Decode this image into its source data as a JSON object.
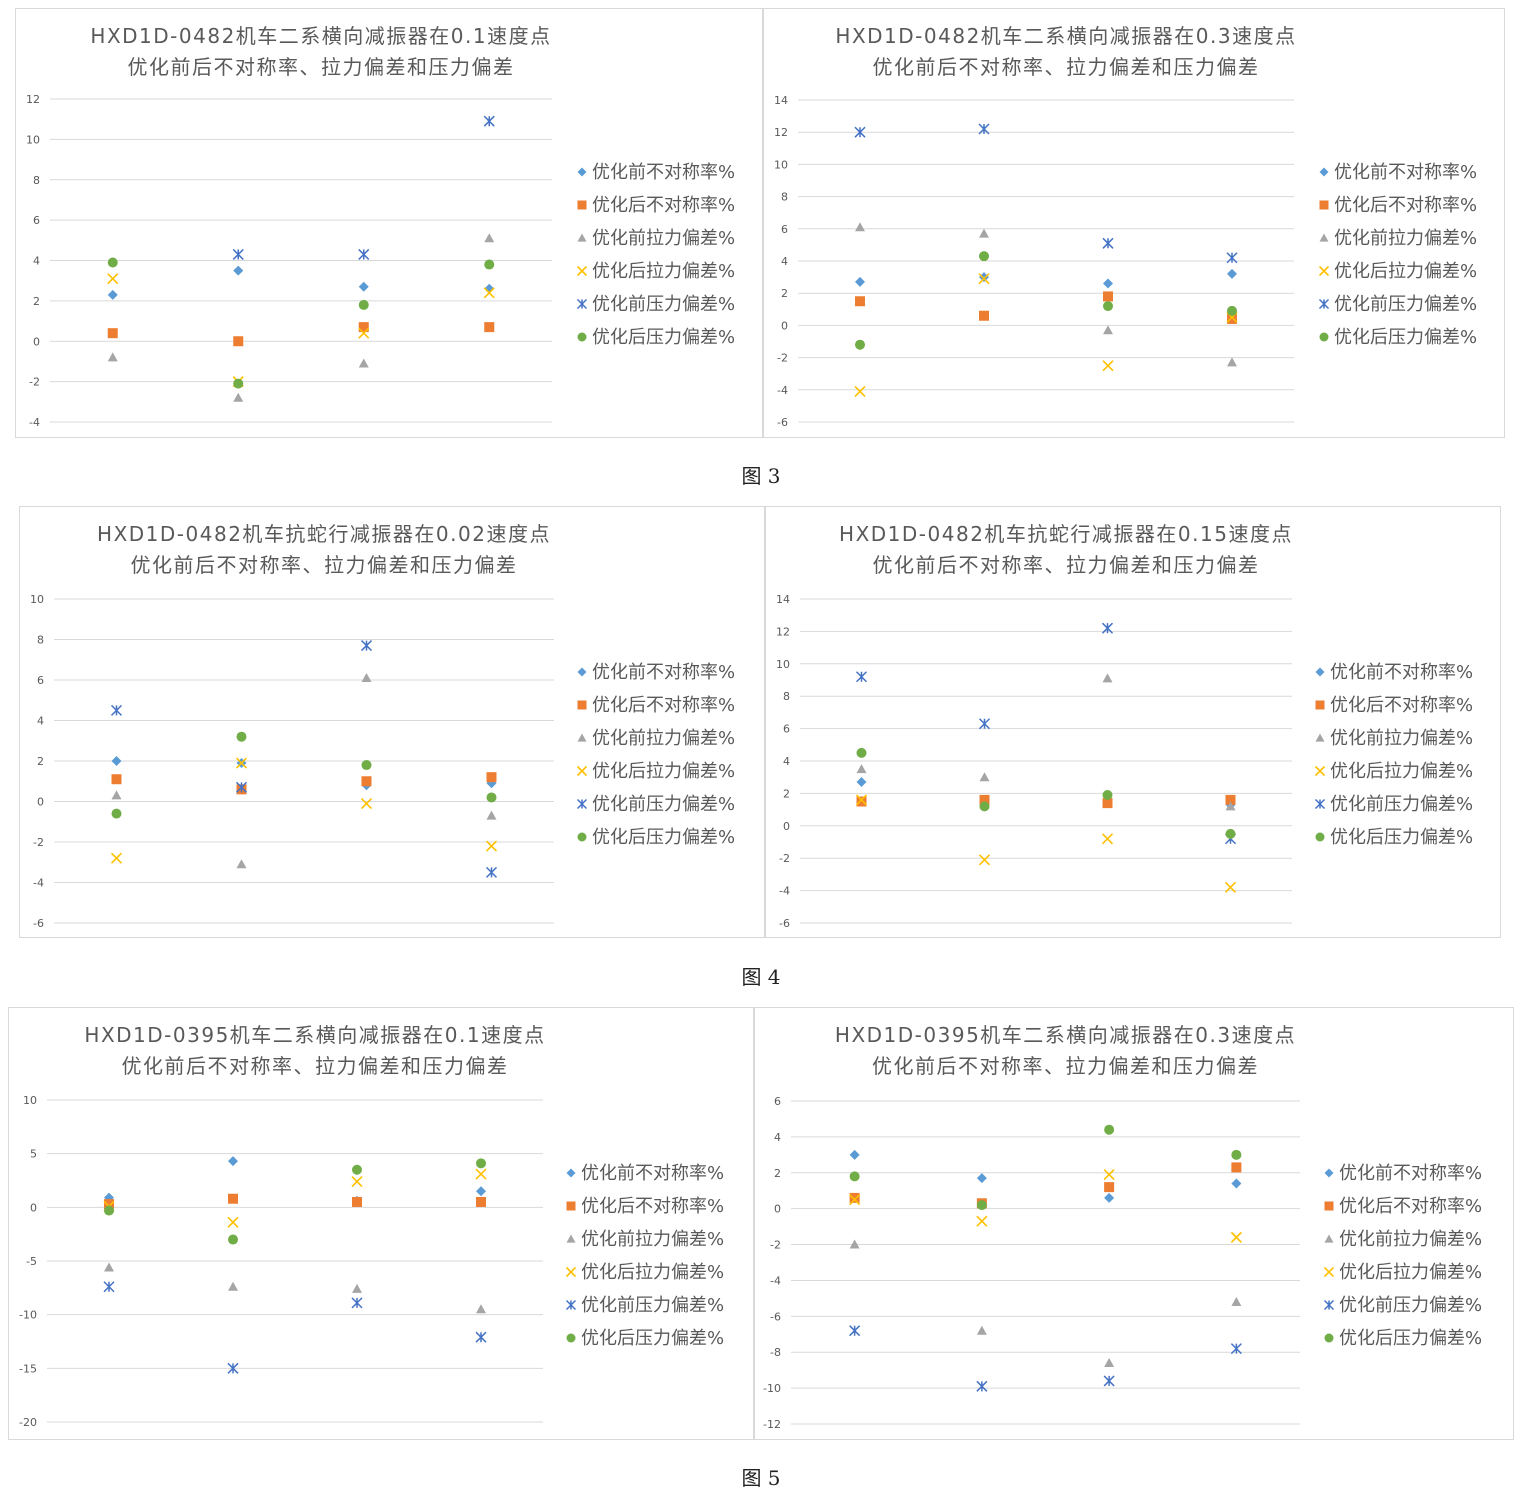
{
  "figure_captions": [
    "图 3",
    "图 4",
    "图 5"
  ],
  "legend": [
    {
      "name": "优化前不对称率%",
      "color": "#5b9bd5",
      "marker": "diamond"
    },
    {
      "name": "优化后不对称率%",
      "color": "#ed7d31",
      "marker": "square"
    },
    {
      "name": "优化前拉力偏差%",
      "color": "#a5a5a5",
      "marker": "triangle"
    },
    {
      "name": "优化后拉力偏差%",
      "color": "#ffc000",
      "marker": "x"
    },
    {
      "name": "优化前压力偏差%",
      "color": "#4472c4",
      "marker": "star"
    },
    {
      "name": "优化后压力偏差%",
      "color": "#70ad47",
      "marker": "circle"
    }
  ],
  "chart_data": [
    {
      "type": "scatter",
      "title": [
        "HXD1D-0482机车二系横向减振器在0.1速度点",
        "优化前后不对称率、拉力偏差和压力偏差"
      ],
      "ylim": [
        -4,
        12
      ],
      "yticks": [
        -4,
        -2,
        0,
        2,
        4,
        6,
        8,
        10,
        12
      ],
      "x": [
        1,
        2,
        3,
        4
      ],
      "grid": true,
      "legend_position": "right",
      "series": [
        {
          "name": "优化前不对称率%",
          "values": [
            2.3,
            3.5,
            2.7,
            2.6
          ]
        },
        {
          "name": "优化后不对称率%",
          "values": [
            0.4,
            0.0,
            0.7,
            0.7
          ]
        },
        {
          "name": "优化前拉力偏差%",
          "values": [
            -0.8,
            -2.8,
            -1.1,
            5.1
          ]
        },
        {
          "name": "优化后拉力偏差%",
          "values": [
            3.1,
            -2.0,
            0.4,
            2.4
          ]
        },
        {
          "name": "优化前压力偏差%",
          "values": [
            null,
            4.3,
            4.3,
            10.9
          ]
        },
        {
          "name": "优化后压力偏差%",
          "values": [
            3.9,
            -2.1,
            1.8,
            3.8
          ]
        }
      ]
    },
    {
      "type": "scatter",
      "title": [
        "HXD1D-0482机车二系横向减振器在0.3速度点",
        "优化前后不对称率、拉力偏差和压力偏差"
      ],
      "ylim": [
        -6,
        14
      ],
      "yticks": [
        -6,
        -4,
        -2,
        0,
        2,
        4,
        6,
        8,
        10,
        12,
        14
      ],
      "x": [
        1,
        2,
        3,
        4
      ],
      "grid": true,
      "legend_position": "right",
      "series": [
        {
          "name": "优化前不对称率%",
          "values": [
            2.7,
            3.0,
            2.6,
            3.2
          ]
        },
        {
          "name": "优化后不对称率%",
          "values": [
            1.5,
            0.6,
            1.8,
            0.4
          ]
        },
        {
          "name": "优化前拉力偏差%",
          "values": [
            6.1,
            5.7,
            -0.3,
            -2.3
          ]
        },
        {
          "name": "优化后拉力偏差%",
          "values": [
            -4.1,
            2.9,
            -2.5,
            0.5
          ]
        },
        {
          "name": "优化前压力偏差%",
          "values": [
            12.0,
            12.2,
            5.1,
            4.2
          ]
        },
        {
          "name": "优化后压力偏差%",
          "values": [
            -1.2,
            4.3,
            1.2,
            0.9
          ]
        }
      ]
    },
    {
      "type": "scatter",
      "title": [
        "HXD1D-0482机车抗蛇行减振器在0.02速度点",
        "优化前后不对称率、拉力偏差和压力偏差"
      ],
      "ylim": [
        -6,
        10
      ],
      "yticks": [
        -6,
        -4,
        -2,
        0,
        2,
        4,
        6,
        8,
        10
      ],
      "x": [
        1,
        2,
        3,
        4
      ],
      "grid": true,
      "legend_position": "right",
      "series": [
        {
          "name": "优化前不对称率%",
          "values": [
            2.0,
            1.9,
            0.8,
            0.9
          ]
        },
        {
          "name": "优化后不对称率%",
          "values": [
            1.1,
            0.6,
            1.0,
            1.2
          ]
        },
        {
          "name": "优化前拉力偏差%",
          "values": [
            0.3,
            -3.1,
            6.1,
            -0.7
          ]
        },
        {
          "name": "优化后拉力偏差%",
          "values": [
            -2.8,
            1.9,
            -0.1,
            -2.2
          ]
        },
        {
          "name": "优化前压力偏差%",
          "values": [
            4.5,
            0.7,
            7.7,
            -3.5
          ]
        },
        {
          "name": "优化后压力偏差%",
          "values": [
            -0.6,
            3.2,
            1.8,
            0.2
          ]
        }
      ]
    },
    {
      "type": "scatter",
      "title": [
        "HXD1D-0482机车抗蛇行减振器在0.15速度点",
        "优化前后不对称率、拉力偏差和压力偏差"
      ],
      "ylim": [
        -6,
        14
      ],
      "yticks": [
        -6,
        -4,
        -2,
        0,
        2,
        4,
        6,
        8,
        10,
        12,
        14
      ],
      "x": [
        1,
        2,
        3,
        4
      ],
      "grid": true,
      "legend_position": "right",
      "series": [
        {
          "name": "优化前不对称率%",
          "values": [
            2.7,
            1.5,
            1.5,
            1.3
          ]
        },
        {
          "name": "优化后不对称率%",
          "values": [
            1.5,
            1.6,
            1.4,
            1.6
          ]
        },
        {
          "name": "优化前拉力偏差%",
          "values": [
            3.5,
            3.0,
            9.1,
            1.2
          ]
        },
        {
          "name": "优化后拉力偏差%",
          "values": [
            1.6,
            -2.1,
            -0.8,
            -3.8
          ]
        },
        {
          "name": "优化前压力偏差%",
          "values": [
            9.2,
            6.3,
            12.2,
            -0.8
          ]
        },
        {
          "name": "优化后压力偏差%",
          "values": [
            4.5,
            1.2,
            1.9,
            -0.5
          ]
        }
      ]
    },
    {
      "type": "scatter",
      "title": [
        "HXD1D-0395机车二系横向减振器在0.1速度点",
        "优化前后不对称率、拉力偏差和压力偏差"
      ],
      "ylim": [
        -20,
        10
      ],
      "yticks": [
        -20,
        -15,
        -10,
        -5,
        0,
        5,
        10
      ],
      "x": [
        1,
        2,
        3,
        4
      ],
      "grid": true,
      "legend_position": "right",
      "series": [
        {
          "name": "优化前不对称率%",
          "values": [
            0.9,
            4.3,
            0.6,
            1.5
          ]
        },
        {
          "name": "优化后不对称率%",
          "values": [
            0.3,
            0.8,
            0.5,
            0.5
          ]
        },
        {
          "name": "优化前拉力偏差%",
          "values": [
            -5.6,
            -7.4,
            -7.6,
            -9.5
          ]
        },
        {
          "name": "优化后拉力偏差%",
          "values": [
            0.1,
            -1.4,
            2.4,
            3.1
          ]
        },
        {
          "name": "优化前压力偏差%",
          "values": [
            -7.4,
            -15.0,
            -8.9,
            -12.1
          ]
        },
        {
          "name": "优化后压力偏差%",
          "values": [
            -0.3,
            -3.0,
            3.5,
            4.1
          ]
        }
      ]
    },
    {
      "type": "scatter",
      "title": [
        "HXD1D-0395机车二系横向减振器在0.3速度点",
        "优化前后不对称率、拉力偏差和压力偏差"
      ],
      "ylim": [
        -12,
        6
      ],
      "yticks": [
        -12,
        -10,
        -8,
        -6,
        -4,
        -2,
        0,
        2,
        4,
        6
      ],
      "x": [
        1,
        2,
        3,
        4
      ],
      "grid": true,
      "legend_position": "right",
      "series": [
        {
          "name": "优化前不对称率%",
          "values": [
            3.0,
            1.7,
            0.6,
            1.4
          ]
        },
        {
          "name": "优化后不对称率%",
          "values": [
            0.6,
            0.3,
            1.2,
            2.3
          ]
        },
        {
          "name": "优化前拉力偏差%",
          "values": [
            -2.0,
            -6.8,
            -8.6,
            -5.2
          ]
        },
        {
          "name": "优化后拉力偏差%",
          "values": [
            0.5,
            -0.7,
            1.9,
            -1.6
          ]
        },
        {
          "name": "优化前压力偏差%",
          "values": [
            -6.8,
            -9.9,
            -9.6,
            -7.8
          ]
        },
        {
          "name": "优化后压力偏差%",
          "values": [
            1.8,
            0.2,
            4.4,
            3.0
          ]
        }
      ]
    }
  ]
}
